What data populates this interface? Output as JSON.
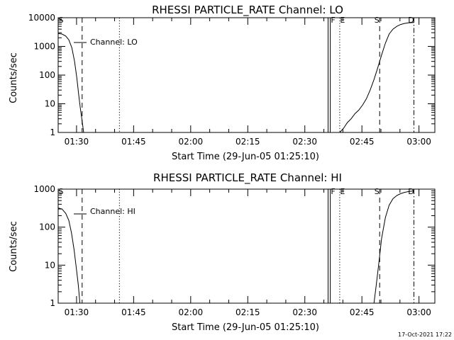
{
  "footer": {
    "timestamp": "17-Oct-2021 17:22"
  },
  "colors": {
    "background": "#ffffff",
    "ink": "#000000"
  },
  "chart_data": [
    {
      "type": "line",
      "title": "RHESSI PARTICLE_RATE Channel: LO",
      "xlabel": "Start Time (29-Jun-05 01:25:10)",
      "ylabel": "Counts/sec",
      "yscale": "log",
      "xlim_minutes": [
        0,
        99.0
      ],
      "ylim": [
        1,
        10000
      ],
      "ytick_values": [
        1,
        10,
        100,
        1000,
        10000
      ],
      "ytick_labels": [
        "1",
        "10",
        "100",
        "1000",
        "10000"
      ],
      "xtick_values": [
        4.83,
        19.83,
        34.83,
        49.83,
        64.83,
        79.83,
        94.83
      ],
      "xtick_labels": [
        "01:30",
        "01:45",
        "02:00",
        "02:15",
        "02:30",
        "02:45",
        "03:00"
      ],
      "legend": {
        "label": "Channel: LO",
        "position": "top-left"
      },
      "markers": [
        {
          "label": "S",
          "x": 0,
          "style": "none"
        },
        {
          "label": "",
          "x": 6.3,
          "style": "dashed"
        },
        {
          "label": "",
          "x": 16.1,
          "style": "dotted"
        },
        {
          "label": "F",
          "x": 71.5,
          "style": "solid"
        },
        {
          "label": "E",
          "x": 74.0,
          "style": "dotted"
        },
        {
          "label": "S",
          "x": 84.5,
          "style": "dashed"
        },
        {
          "label": "D",
          "x": 93.5,
          "style": "dashdot"
        }
      ],
      "series": [
        {
          "name": "Channel: LO",
          "segments": [
            [
              [
                0,
                2800
              ],
              [
                1,
                2700
              ],
              [
                2,
                2300
              ],
              [
                2.8,
                1700
              ],
              [
                3.6,
                900
              ],
              [
                4.3,
                300
              ],
              [
                4.9,
                80
              ],
              [
                5.4,
                20
              ],
              [
                5.9,
                6
              ],
              [
                6.3,
                2.5
              ],
              [
                6.7,
                1
              ]
            ],
            [
              [
                74.0,
                1
              ],
              [
                75.0,
                1.4
              ],
              [
                76.0,
                2.2
              ],
              [
                77.0,
                3
              ],
              [
                78.0,
                4.5
              ],
              [
                79.0,
                6
              ],
              [
                80.0,
                9
              ],
              [
                81.0,
                15
              ],
              [
                82.0,
                30
              ],
              [
                83.0,
                70
              ],
              [
                84.0,
                180
              ],
              [
                85.0,
                500
              ],
              [
                86.0,
                1300
              ],
              [
                87.0,
                2700
              ],
              [
                88.0,
                4000
              ],
              [
                89.0,
                5000
              ],
              [
                90.0,
                5800
              ],
              [
                91.0,
                6300
              ],
              [
                92.0,
                6600
              ],
              [
                93.5,
                6800
              ]
            ]
          ]
        }
      ]
    },
    {
      "type": "line",
      "title": "RHESSI PARTICLE_RATE Channel: HI",
      "xlabel": "Start Time (29-Jun-05 01:25:10)",
      "ylabel": "Counts/sec",
      "yscale": "log",
      "xlim_minutes": [
        0,
        99.0
      ],
      "ylim": [
        1,
        1000
      ],
      "ytick_values": [
        1,
        10,
        100,
        1000
      ],
      "ytick_labels": [
        "1",
        "10",
        "100",
        "1000"
      ],
      "xtick_values": [
        4.83,
        19.83,
        34.83,
        49.83,
        64.83,
        79.83,
        94.83
      ],
      "xtick_labels": [
        "01:30",
        "01:45",
        "02:00",
        "02:15",
        "02:30",
        "02:45",
        "03:00"
      ],
      "legend": {
        "label": "Channel: HI",
        "position": "top-left"
      },
      "markers": [
        {
          "label": "S",
          "x": 0,
          "style": "none"
        },
        {
          "label": "",
          "x": 6.3,
          "style": "dashed"
        },
        {
          "label": "",
          "x": 16.1,
          "style": "dotted"
        },
        {
          "label": "F",
          "x": 71.5,
          "style": "solid"
        },
        {
          "label": "E",
          "x": 74.0,
          "style": "dotted"
        },
        {
          "label": "S",
          "x": 84.5,
          "style": "dashed"
        },
        {
          "label": "D",
          "x": 93.5,
          "style": "dashdot"
        }
      ],
      "series": [
        {
          "name": "Channel: HI",
          "segments": [
            [
              [
                0,
                320
              ],
              [
                1,
                300
              ],
              [
                2,
                230
              ],
              [
                2.8,
                150
              ],
              [
                3.5,
                70
              ],
              [
                4.2,
                25
              ],
              [
                4.8,
                8
              ],
              [
                5.3,
                3
              ],
              [
                5.7,
                1
              ]
            ],
            [
              [
                83.0,
                1
              ],
              [
                83.6,
                3
              ],
              [
                84.3,
                12
              ],
              [
                85.0,
                50
              ],
              [
                86.0,
                180
              ],
              [
                87.0,
                380
              ],
              [
                88.0,
                560
              ],
              [
                89.0,
                680
              ],
              [
                90.0,
                760
              ],
              [
                91.0,
                820
              ],
              [
                92.0,
                860
              ],
              [
                93.5,
                900
              ]
            ]
          ]
        }
      ]
    }
  ]
}
